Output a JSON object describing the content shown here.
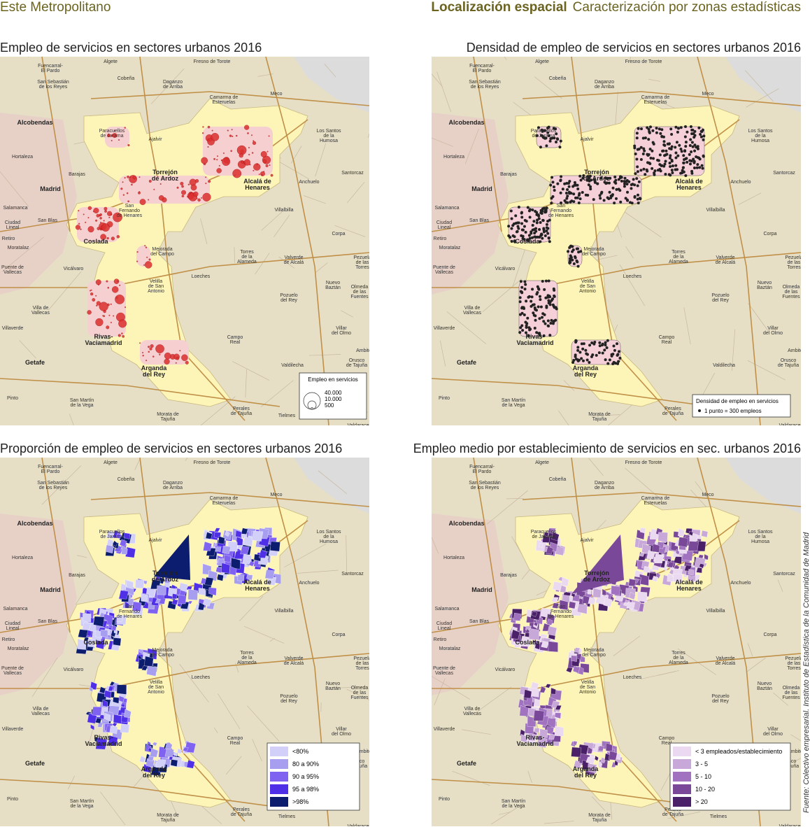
{
  "header": {
    "left": "Este Metropolitano",
    "section": "Localización espacial",
    "subtitle": "Caracterización por zonas estadísticas"
  },
  "source": "Fuente: Colectivo empresarial. Instituto de Estadística de la Comunidad de Madrid",
  "places": [
    [
      "Fuencarral-",
      "El Pardo"
    ],
    [
      "Algete"
    ],
    [
      "Cobeña"
    ],
    [
      "Fresno de Torote"
    ],
    [
      "Daganzo",
      "de Arriba"
    ],
    [
      "San Sebastián",
      "de los Reyes"
    ],
    [
      "Camarma de",
      "Esteruelas"
    ],
    [
      "Meco"
    ],
    [
      "Alcobendas"
    ],
    [
      "Paracuellos",
      "de Jarama"
    ],
    [
      "Ajalvir"
    ],
    [
      "Los Santos",
      "de la",
      "Humosa"
    ],
    [
      "Hortaleza"
    ],
    [
      "Torrejón",
      "de Ardoz"
    ],
    [
      "Barajas"
    ],
    [
      "Alcalá de",
      "Henares"
    ],
    [
      "Santorcaz"
    ],
    [
      "Madrid"
    ],
    [
      "Anchuelo"
    ],
    [
      "Salamanca"
    ],
    [
      "San",
      "Fernando",
      "de Henares"
    ],
    [
      "Villalbilla"
    ],
    [
      "San Blas"
    ],
    [
      "Ciudad",
      "Lineal"
    ],
    [
      "Coslada"
    ],
    [
      "Corpa"
    ],
    [
      "Retiro"
    ],
    [
      "Moratalaz"
    ],
    [
      "Mejorada",
      "del Campo"
    ],
    [
      "Torres",
      "de la",
      "Alameda"
    ],
    [
      "Valverde",
      "de Alcalá"
    ],
    [
      "Pezuela",
      "de las",
      "Torres"
    ],
    [
      "Puente de",
      "Vallecas"
    ],
    [
      "Vicálvaro"
    ],
    [
      "Velilla",
      "de San",
      "Antonio"
    ],
    [
      "Loeches"
    ],
    [
      "Nuevo",
      "Baztán"
    ],
    [
      "Pozuelo",
      "del Rey"
    ],
    [
      "Olmeda",
      "de las",
      "Fuentes"
    ],
    [
      "Villa de",
      "Vallecas"
    ],
    [
      "Villaverde"
    ],
    [
      "Rivas-",
      "Vaciamadrid"
    ],
    [
      "Campo",
      "Real"
    ],
    [
      "Villar",
      "del Olmo"
    ],
    [
      "Arganda",
      "del Rey"
    ],
    [
      "Ambite"
    ],
    [
      "Getafe"
    ],
    [
      "Valdilecha"
    ],
    [
      "Orusco",
      "de Tajuña"
    ],
    [
      "Pinto"
    ],
    [
      "San Martín",
      "de la Vega"
    ],
    [
      "Morata de",
      "Tajuña"
    ],
    [
      "Perales",
      "de Tajuña"
    ],
    [
      "Tielmes"
    ],
    [
      "Valdaracete"
    ]
  ],
  "maps": [
    {
      "title": "Empleo de servicios en sectores urbanos 2016",
      "legend": {
        "title": "Empleo en servicios",
        "sizes": [
          {
            "value": 40000,
            "label": "40.000"
          },
          {
            "value": 10000,
            "label": "10.000"
          },
          {
            "value": 500,
            "label": "500"
          }
        ]
      }
    },
    {
      "title": "Densidad de empleo de servicios en sectores urbanos 2016",
      "legend": {
        "title": "Densidad de empleo en servicios",
        "note": "1 punto = 300 empleos"
      }
    },
    {
      "title": "Proporción de empleo de servicios en sectores urbanos 2016",
      "legend": {
        "classes": [
          {
            "label": "<80%",
            "color": "#d2d0f8"
          },
          {
            "label": "80 a 90%",
            "color": "#a89ef0"
          },
          {
            "label": "90 a 95%",
            "color": "#7f62f0"
          },
          {
            "label": "95 a 98%",
            "color": "#5030e6"
          },
          {
            "label": ">98%",
            "color": "#0c1c6e"
          }
        ]
      }
    },
    {
      "title": "Empleo medio por establecimiento de servicios en sec. urbanos 2016",
      "legend": {
        "classes": [
          {
            "label": "< 3 empleados/establecimiento",
            "color": "#ead9f0"
          },
          {
            "label": "3 - 5",
            "color": "#c8a8d8"
          },
          {
            "label": "5 - 10",
            "color": "#a072c0"
          },
          {
            "label": "10 - 20",
            "color": "#7a4898"
          },
          {
            "label": "> 20",
            "color": "#4a2068"
          }
        ]
      }
    }
  ]
}
